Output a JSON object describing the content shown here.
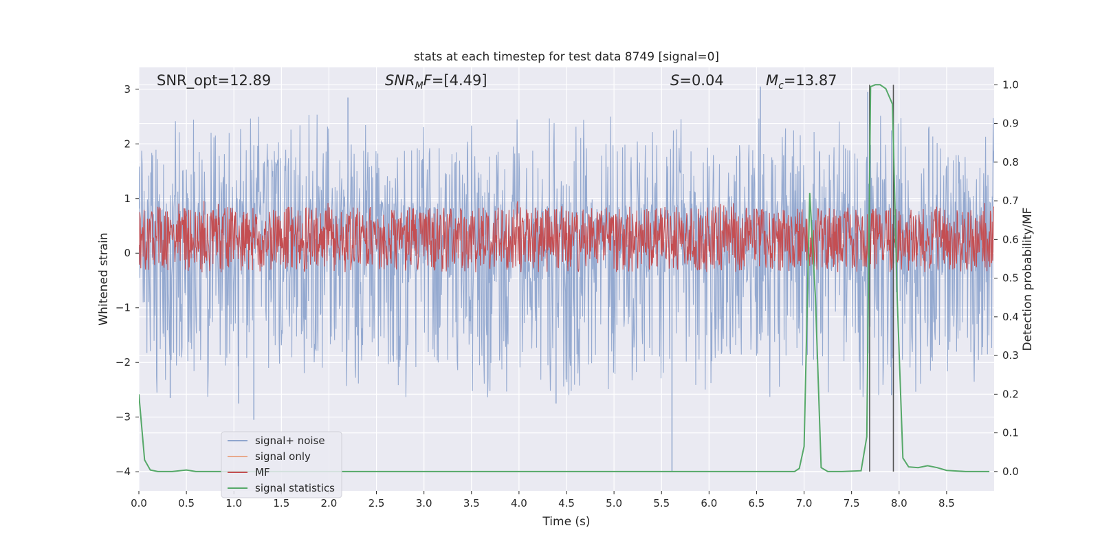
{
  "chart_data": {
    "type": "line",
    "title": "stats at each timestep for test data 8749 [signal=0]",
    "xlabel": "Time (s)",
    "ylabel": "Whitened strain",
    "y2label": "Detection probability/MF",
    "xlim": [
      0,
      9.0
    ],
    "ylim": [
      -4.35,
      3.4
    ],
    "y2lim": [
      -0.05,
      1.045
    ],
    "xticks": [
      0.0,
      0.5,
      1.0,
      1.5,
      2.0,
      2.5,
      3.0,
      3.5,
      4.0,
      4.5,
      5.0,
      5.5,
      6.0,
      6.5,
      7.0,
      7.5,
      8.0,
      8.5
    ],
    "xtick_labels": [
      "0.0",
      "0.5",
      "1.0",
      "1.5",
      "2.0",
      "2.5",
      "3.0",
      "3.5",
      "4.0",
      "4.5",
      "5.0",
      "5.5",
      "6.0",
      "6.5",
      "7.0",
      "7.5",
      "8.0",
      "8.5"
    ],
    "yticks": [
      -4,
      -3,
      -2,
      -1,
      0,
      1,
      2,
      3
    ],
    "ytick_labels": [
      "−4",
      "−3",
      "−2",
      "−1",
      "0",
      "1",
      "2",
      "3"
    ],
    "y2ticks": [
      0.0,
      0.1,
      0.2,
      0.3,
      0.4,
      0.5,
      0.6,
      0.7,
      0.8,
      0.9,
      1.0
    ],
    "y2tick_labels": [
      "0.0",
      "0.1",
      "0.2",
      "0.3",
      "0.4",
      "0.5",
      "0.6",
      "0.7",
      "0.8",
      "0.9",
      "1.0"
    ],
    "grid": true,
    "legend_placement": "lower-left",
    "annotations": [
      {
        "parts": [
          {
            "t": "SNR_opt=12.89",
            "i": false
          }
        ]
      },
      {
        "parts": [
          {
            "t": "SNR",
            "i": true
          },
          {
            "t": "M",
            "i": true,
            "sub": true
          },
          {
            "t": "F",
            "i": true
          },
          {
            "t": "=[4.49]",
            "i": false
          }
        ]
      },
      {
        "parts": [
          {
            "t": "S",
            "i": true
          },
          {
            "t": "=0.04",
            "i": false
          }
        ]
      },
      {
        "parts": [
          {
            "t": "M",
            "i": true
          },
          {
            "t": "c",
            "i": true,
            "sub": true
          },
          {
            "t": "=13.87",
            "i": false
          }
        ]
      }
    ],
    "series": [
      {
        "name": "signal+ noise",
        "color": "#8fa5cd",
        "axis": "left",
        "noise": {
          "sample_rate": 200,
          "envelope_top": 2.0,
          "envelope_bottom": -2.1,
          "mean": -0.1,
          "spikes": [
            [
              0.33,
              -2.65
            ],
            [
              1.05,
              -2.75
            ],
            [
              1.21,
              -3.05
            ],
            [
              2.2,
              2.85
            ],
            [
              4.39,
              -2.75
            ],
            [
              5.61,
              -4.0
            ],
            [
              6.54,
              3.05
            ],
            [
              7.67,
              2.95
            ],
            [
              7.92,
              -2.6
            ]
          ]
        }
      },
      {
        "name": "signal only",
        "color": "#e8a98c",
        "axis": "left",
        "values": []
      },
      {
        "name": "MF",
        "color": "#c44e52",
        "axis": "right",
        "noise": {
          "sample_rate": 200,
          "base": 0.6,
          "amplitude": 0.085,
          "peak": 0.7
        }
      },
      {
        "name": "signal statistics",
        "color": "#55a868",
        "axis": "right",
        "x": [
          0.0,
          0.06,
          0.12,
          0.2,
          0.35,
          0.5,
          0.6,
          1.0,
          3.0,
          5.0,
          6.9,
          6.95,
          7.0,
          7.06,
          7.12,
          7.18,
          7.25,
          7.4,
          7.6,
          7.66,
          7.7,
          7.75,
          7.8,
          7.86,
          7.93,
          7.98,
          8.04,
          8.1,
          8.2,
          8.3,
          8.4,
          8.5,
          8.7,
          8.95
        ],
        "y": [
          0.2,
          0.03,
          0.004,
          0.0,
          0.0,
          0.004,
          0.0,
          0.0,
          0.0,
          0.0,
          0.0,
          0.008,
          0.065,
          0.72,
          0.45,
          0.01,
          0.0,
          0.0,
          0.002,
          0.09,
          0.995,
          1.0,
          1.0,
          0.99,
          0.95,
          0.45,
          0.035,
          0.012,
          0.01,
          0.015,
          0.01,
          0.003,
          0.0,
          0.0
        ]
      }
    ],
    "vlines": [
      {
        "x": 7.69,
        "ymin": 0.0,
        "ymax": 1.0,
        "color": "#555555"
      },
      {
        "x": 7.94,
        "ymin": 0.0,
        "ymax": 1.0,
        "color": "#555555"
      }
    ]
  }
}
